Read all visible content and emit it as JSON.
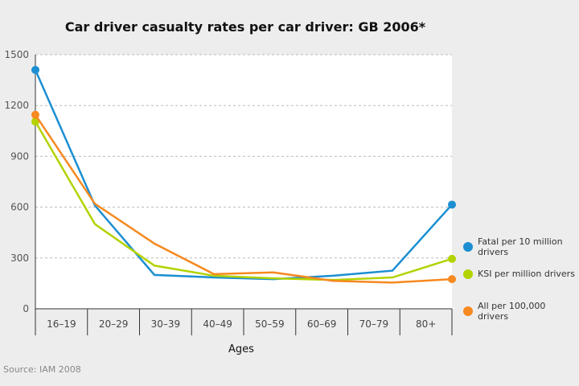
{
  "chart_data": {
    "type": "line",
    "title": "Car driver casualty rates per car driver: GB 2006*",
    "xlabel": "Ages",
    "ylabel": "",
    "categories": [
      "16–19",
      "20–29",
      "30–39",
      "40–49",
      "50–59",
      "60–69",
      "70–79",
      "80+"
    ],
    "ylim": [
      0,
      1500
    ],
    "yticks": [
      0,
      300,
      600,
      900,
      1200,
      1500
    ],
    "grid": true,
    "legend": "right",
    "series": [
      {
        "name": "Fatal per 10 million drivers",
        "color": "#1b8fd2",
        "values": [
          1410,
          610,
          200,
          185,
          175,
          195,
          225,
          615
        ]
      },
      {
        "name": "KSI per million drivers",
        "color": "#b4d200",
        "values": [
          1105,
          500,
          255,
          195,
          180,
          170,
          185,
          295
        ]
      },
      {
        "name": "All per 100,000 drivers",
        "color": "#f6891f",
        "values": [
          1145,
          620,
          385,
          205,
          215,
          165,
          155,
          175
        ]
      }
    ]
  },
  "source": "Source: IAM 2008"
}
